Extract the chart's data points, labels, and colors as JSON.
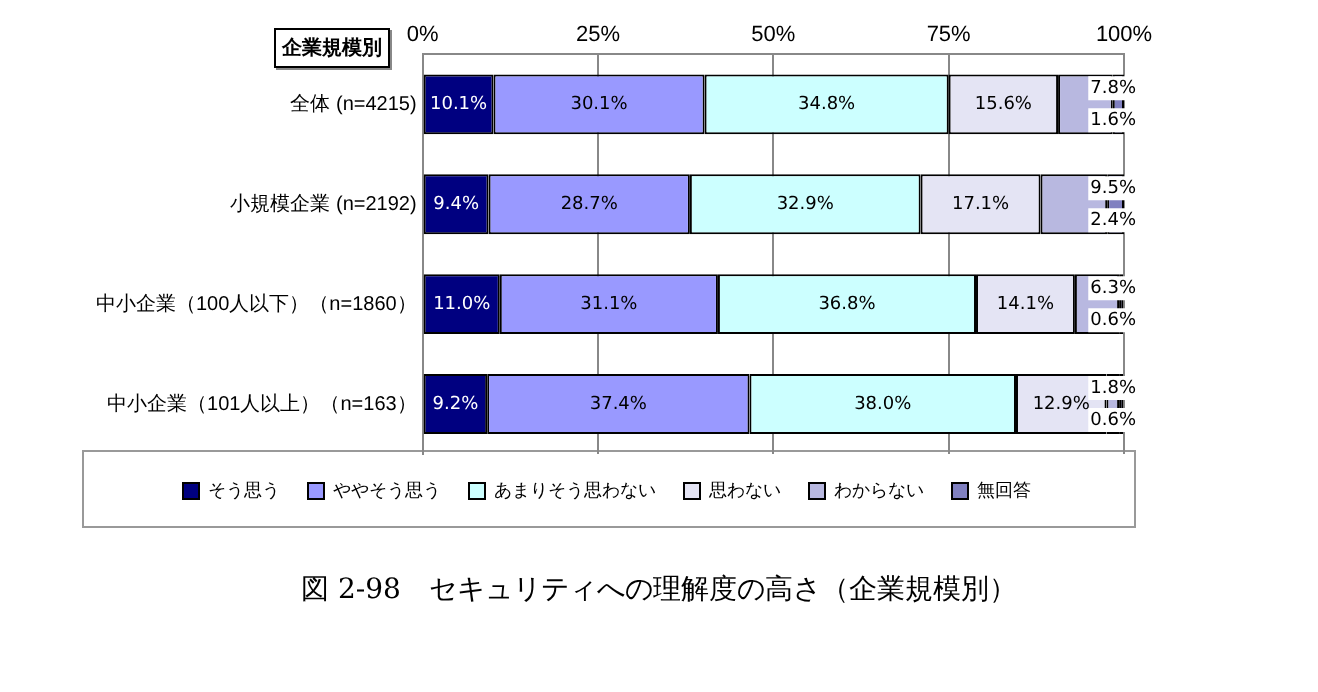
{
  "chart_data": {
    "type": "bar",
    "orientation": "horizontal",
    "stacked": true,
    "title": "図 2-98　セキュリティへの理解度の高さ（企業規模別）",
    "annotations": [
      "企業規模別"
    ],
    "categories": [
      "全体 (n=4215)",
      "小規模企業 (n=2192)",
      "中小企業（100人以下）（n=1860）",
      "中小企業（101人以上）（n=163）"
    ],
    "series": [
      {
        "name": "そう思う",
        "color": "#000080",
        "values": [
          10.1,
          9.4,
          11.0,
          9.2
        ],
        "value_labels": [
          "10.1%",
          "9.4%",
          "11.0%",
          "9.2%"
        ]
      },
      {
        "name": "ややそう思う",
        "color": "#9999ff",
        "values": [
          30.1,
          28.7,
          31.1,
          37.4
        ],
        "value_labels": [
          "30.1%",
          "28.7%",
          "31.1%",
          "37.4%"
        ]
      },
      {
        "name": "あまりそう思わない",
        "color": "#ccffff",
        "values": [
          34.8,
          32.9,
          36.8,
          38.0
        ],
        "value_labels": [
          "34.8%",
          "32.9%",
          "36.8%",
          "38.0%"
        ]
      },
      {
        "name": "思わない",
        "color": "#e4e4f4",
        "values": [
          15.6,
          17.1,
          14.1,
          12.9
        ],
        "value_labels": [
          "15.6%",
          "17.1%",
          "14.1%",
          "12.9%"
        ]
      },
      {
        "name": "わからない",
        "color": "#b8b8e0",
        "values": [
          7.8,
          9.5,
          6.3,
          1.8
        ],
        "value_labels": [
          "7.8%",
          "9.5%",
          "6.3%",
          "1.8%"
        ]
      },
      {
        "name": "無回答",
        "color": "#8080c0",
        "values": [
          1.6,
          2.4,
          0.6,
          0.6
        ],
        "value_labels": [
          "1.6%",
          "2.4%",
          "0.6%",
          "0.6%"
        ]
      }
    ],
    "xlim": [
      0,
      100
    ],
    "xticks": [
      {
        "value": 0,
        "label": "0%"
      },
      {
        "value": 25,
        "label": "25%"
      },
      {
        "value": 50,
        "label": "50%"
      },
      {
        "value": 75,
        "label": "75%"
      },
      {
        "value": 100,
        "label": "100%"
      }
    ],
    "grid": "x",
    "legend": "bottom"
  }
}
